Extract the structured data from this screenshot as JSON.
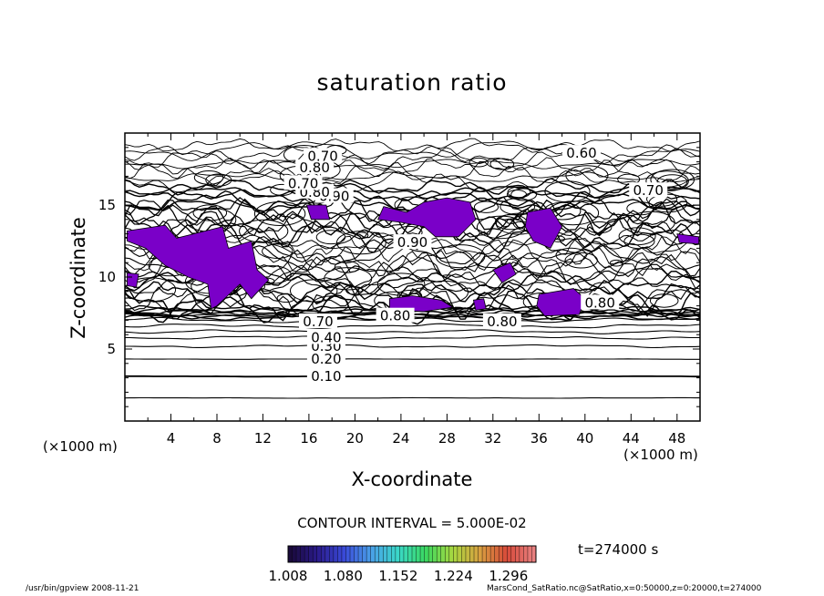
{
  "chart_data": {
    "type": "contour",
    "title": "saturation ratio",
    "xlabel": "X-coordinate",
    "ylabel": "Z-coordinate",
    "x_unit": "(×1000 m)",
    "xlim": [
      0,
      50
    ],
    "ylim": [
      0,
      20
    ],
    "x_ticks": [
      4,
      8,
      12,
      16,
      20,
      24,
      28,
      32,
      36,
      40,
      44,
      48
    ],
    "y_ticks": [
      5,
      10,
      15
    ],
    "contour_interval": "CONTOUR INTERVAL = 5.000E-02",
    "contour_labels": [
      {
        "text": "0.10",
        "x": 17.5,
        "z": 3.1
      },
      {
        "text": "0.20",
        "x": 17.5,
        "z": 4.3
      },
      {
        "text": "0.30",
        "x": 17.5,
        "z": 5.2
      },
      {
        "text": "0.40",
        "x": 17.5,
        "z": 5.8
      },
      {
        "text": "0.70",
        "x": 16.8,
        "z": 6.9
      },
      {
        "text": "0.80",
        "x": 23.5,
        "z": 7.3
      },
      {
        "text": "0.80",
        "x": 32.8,
        "z": 6.9
      },
      {
        "text": "0.80",
        "x": 41.3,
        "z": 8.2
      },
      {
        "text": "0.90",
        "x": 25.0,
        "z": 12.4
      },
      {
        "text": "0.90",
        "x": 18.2,
        "z": 15.6
      },
      {
        "text": "0.80",
        "x": 16.5,
        "z": 15.9
      },
      {
        "text": "0.70",
        "x": 15.5,
        "z": 16.5
      },
      {
        "text": "0.80",
        "x": 16.5,
        "z": 17.6
      },
      {
        "text": "0.70",
        "x": 17.2,
        "z": 18.4
      },
      {
        "text": "0.60",
        "x": 39.7,
        "z": 18.6
      },
      {
        "text": "0.70",
        "x": 45.5,
        "z": 16.0
      }
    ],
    "colorbar": {
      "ticks": [
        "1.008",
        "1.080",
        "1.152",
        "1.224",
        "1.296"
      ],
      "range": [
        1.008,
        1.332
      ],
      "colors": [
        "#1a0a3a",
        "#2a1a8a",
        "#3a4ad8",
        "#4aa0e8",
        "#3ad8c8",
        "#3ad860",
        "#a8d840",
        "#d8a040",
        "#d84a3a",
        "#e88080"
      ]
    },
    "fill_color": "#7a00c8",
    "time_label": "t=274000 s"
  },
  "footer": {
    "left": "/usr/bin/gpview   2008-11-21",
    "right": "MarsCond_SatRatio.nc@SatRatio,x=0:50000,z=0:20000,t=274000"
  }
}
